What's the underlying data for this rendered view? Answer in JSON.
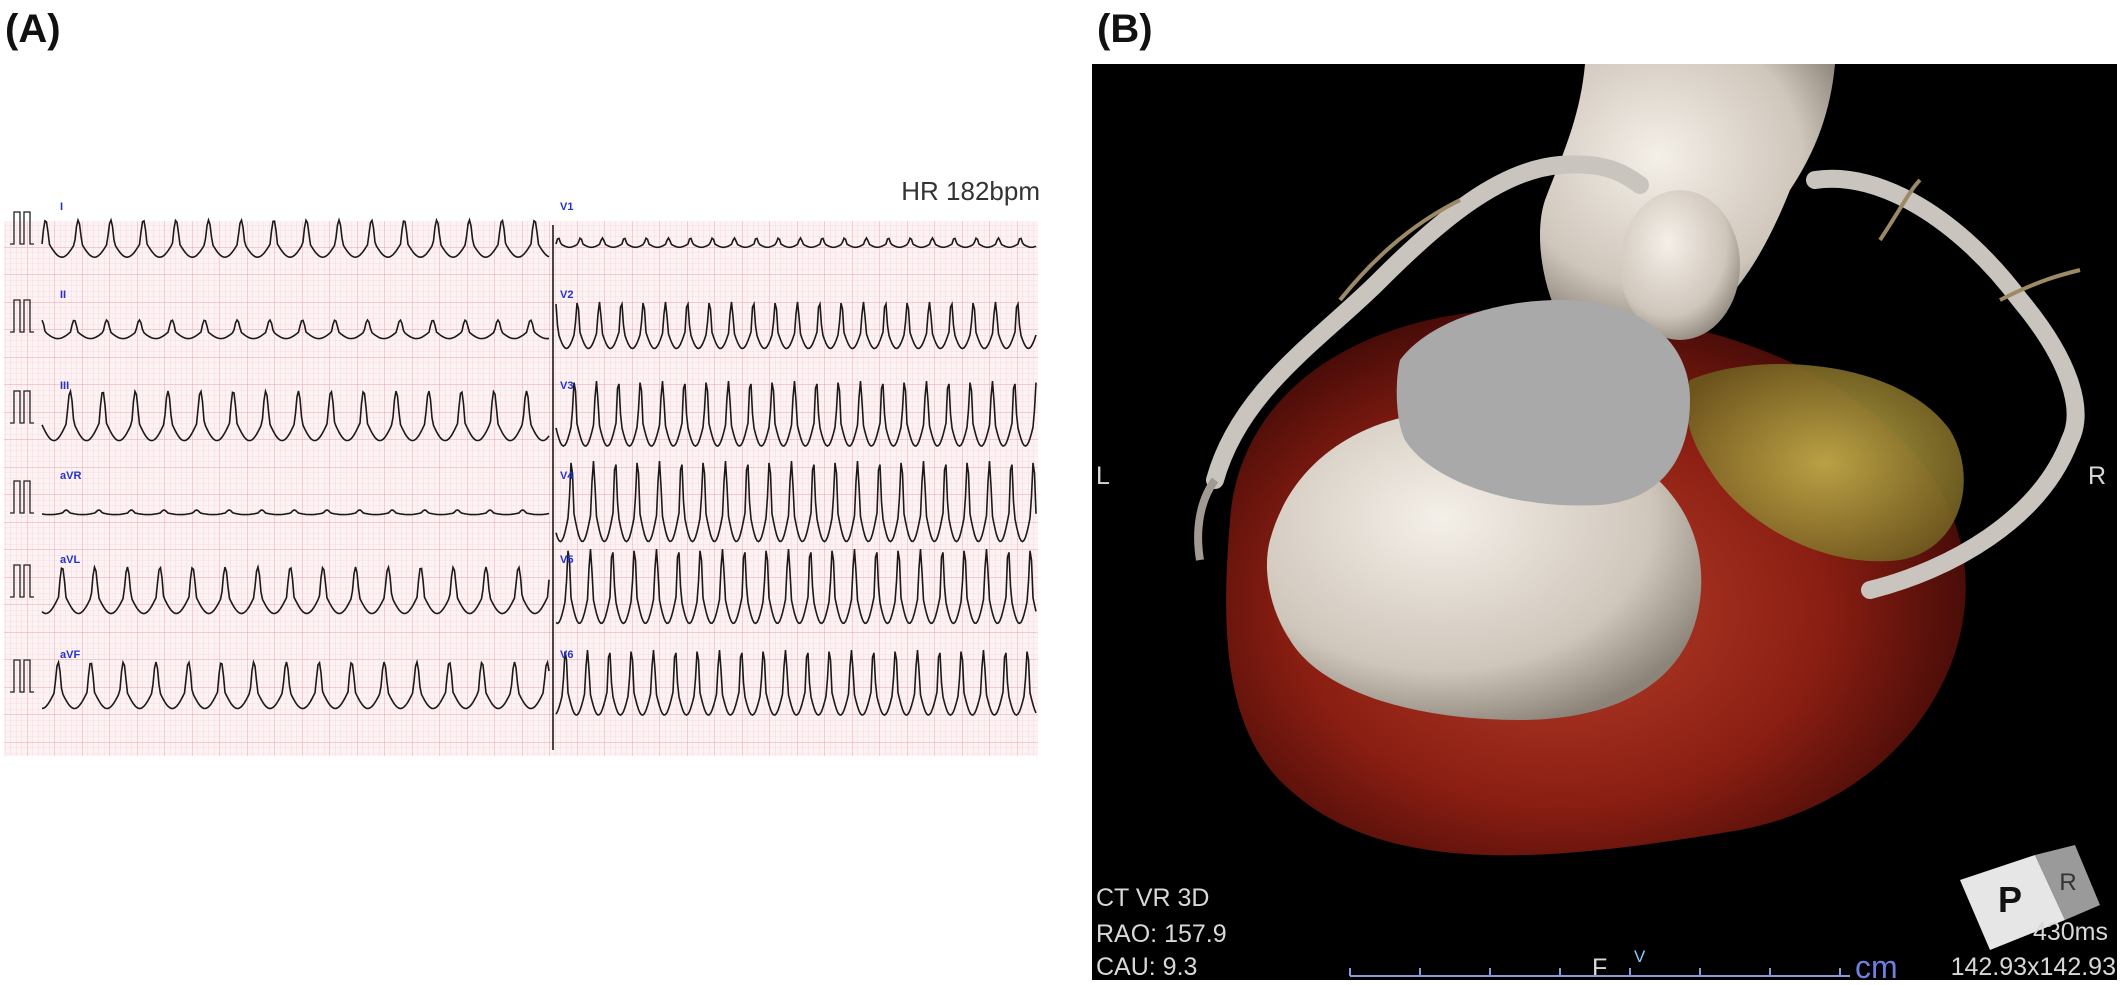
{
  "panel_a": {
    "label": "(A)",
    "heart_rate": "HR 182bpm",
    "leads": [
      "I",
      "II",
      "III",
      "aVR",
      "aVL",
      "aVF",
      "V1",
      "V2",
      "V3",
      "V4",
      "V5",
      "V6"
    ]
  },
  "panel_b": {
    "label": "(B)",
    "orientation_left": "L",
    "orientation_right": "R",
    "orientation_bottom": "F",
    "marker": "V",
    "modality": "CT VR 3D",
    "rao": "RAO: 157.9",
    "cau": "CAU: 9.3",
    "scale_unit": "cm",
    "phase": "430ms",
    "field_of_view": "142.93x142.93",
    "cube_front": "P",
    "cube_side": "R"
  }
}
